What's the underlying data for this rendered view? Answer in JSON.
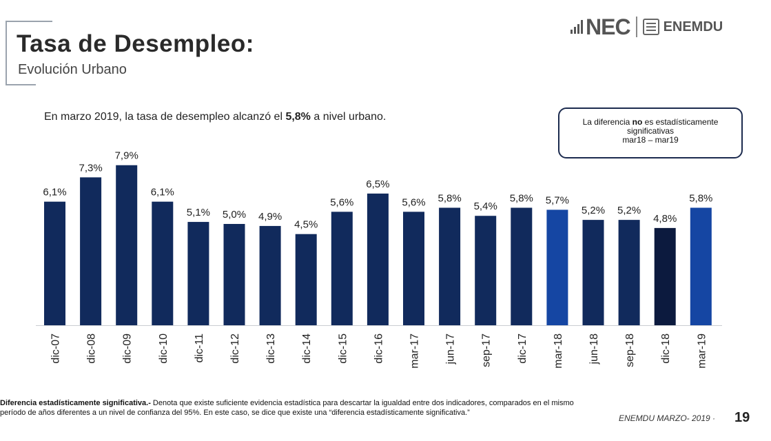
{
  "header": {
    "title": "Tasa de Desempleo:",
    "subtitle": "Evolución Urbano",
    "logo_main": "NEC",
    "logo_sub": "ENEMDU"
  },
  "headline": {
    "text_before": "En marzo 2019, la tasa de desempleo alcanzó el ",
    "text_bold": "5,8%",
    "text_after": " a nivel urbano."
  },
  "note_box": {
    "line1_before": "La diferencia ",
    "line1_bold": "no",
    "line1_after": " es estadísticamente",
    "line2": "significativas",
    "line3": "mar18 – mar19"
  },
  "chart_data": {
    "type": "bar",
    "title": "",
    "xlabel": "",
    "ylabel": "",
    "ylim": [
      0,
      8.5
    ],
    "categories": [
      "dic-07",
      "dic-08",
      "dic-09",
      "dic-10",
      "dic-11",
      "dic-12",
      "dic-13",
      "dic-14",
      "dic-15",
      "dic-16",
      "mar-17",
      "jun-17",
      "sep-17",
      "dic-17",
      "mar-18",
      "jun-18",
      "sep-18",
      "dic-18",
      "mar-19"
    ],
    "values": [
      6.1,
      7.3,
      7.9,
      6.1,
      5.1,
      5.0,
      4.9,
      4.5,
      5.6,
      6.5,
      5.6,
      5.8,
      5.4,
      5.8,
      5.7,
      5.2,
      5.2,
      4.8,
      5.8
    ],
    "value_labels": [
      "6,1%",
      "7,3%",
      "7,9%",
      "6,1%",
      "5,1%",
      "5,0%",
      "4,9%",
      "4,5%",
      "5,6%",
      "6,5%",
      "5,6%",
      "5,8%",
      "5,4%",
      "5,8%",
      "5,7%",
      "5,2%",
      "5,2%",
      "4,8%",
      "5,8%"
    ],
    "bar_colors": [
      "#112a5c",
      "#112a5c",
      "#112a5c",
      "#112a5c",
      "#112a5c",
      "#112a5c",
      "#112a5c",
      "#112a5c",
      "#112a5c",
      "#112a5c",
      "#112a5c",
      "#112a5c",
      "#112a5c",
      "#112a5c",
      "#1546a3",
      "#112a5c",
      "#112a5c",
      "#0c1a3e",
      "#1546a3"
    ],
    "grid": false
  },
  "footnote": {
    "bold": "Diferencia estadísticamente significativa.-",
    "text": " Denota que existe suficiente evidencia estadística para descartar la igualdad entre dos indicadores, comparados en el mismo período de años diferentes a un nivel de confianza del 95%. En este caso, se dice que existe una “diferencia estadísticamente significativa.”"
  },
  "footer": {
    "label": "ENEMDU MARZO- 2019 ·",
    "page": "19"
  }
}
